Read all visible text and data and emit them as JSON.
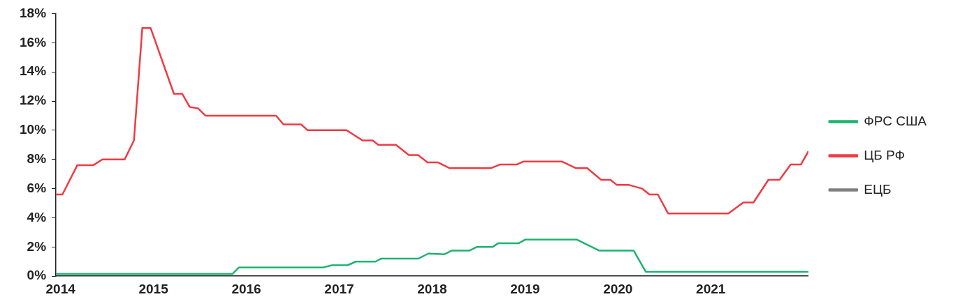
{
  "chart_data": {
    "type": "line",
    "grid": false,
    "legend": "right",
    "marker": "none",
    "line_style": "solid",
    "xlim": [
      2013.95,
      2022.05
    ],
    "xticks": [
      2014,
      2015,
      2016,
      2017,
      2018,
      2019,
      2020,
      2021
    ],
    "ylim": [
      0,
      18
    ],
    "yticks": [
      {
        "value": 0,
        "label": "0%"
      },
      {
        "value": 2,
        "label": "2%"
      },
      {
        "value": 4,
        "label": "4%"
      },
      {
        "value": 6,
        "label": "6%"
      },
      {
        "value": 8,
        "label": "8%"
      },
      {
        "value": 10,
        "label": "10%"
      },
      {
        "value": 12,
        "label": "12%"
      },
      {
        "value": 14,
        "label": "14%"
      },
      {
        "value": 16,
        "label": "16%"
      },
      {
        "value": 18,
        "label": "18%"
      }
    ],
    "series": [
      {
        "name": "ФРС США",
        "color": "#1db36f",
        "x": [
          2013.95,
          2015.85,
          2015.92,
          2016.83,
          2016.92,
          2017.09,
          2017.18,
          2017.39,
          2017.45,
          2017.85,
          2017.96,
          2018.13,
          2018.21,
          2018.4,
          2018.48,
          2018.65,
          2018.71,
          2018.93,
          2019.0,
          2019.56,
          2019.8,
          2020.17,
          2020.3,
          2022.05
        ],
        "values": [
          0.15,
          0.15,
          0.6,
          0.6,
          0.75,
          0.75,
          1.0,
          1.0,
          1.2,
          1.2,
          1.55,
          1.5,
          1.75,
          1.75,
          2.0,
          2.0,
          2.25,
          2.25,
          2.5,
          2.5,
          1.75,
          1.75,
          0.3,
          0.3
        ]
      },
      {
        "name": "ЦБ РФ",
        "color": "#f03a43",
        "x": [
          2013.95,
          2014.02,
          2014.18,
          2014.35,
          2014.45,
          2014.69,
          2014.79,
          2014.88,
          2014.97,
          2015.22,
          2015.31,
          2015.39,
          2015.48,
          2015.56,
          2016.32,
          2016.4,
          2016.59,
          2016.66,
          2017.08,
          2017.25,
          2017.36,
          2017.42,
          2017.61,
          2017.75,
          2017.85,
          2017.95,
          2018.06,
          2018.19,
          2018.63,
          2018.73,
          2018.91,
          2018.98,
          2019.4,
          2019.55,
          2019.67,
          2019.82,
          2019.92,
          2019.99,
          2020.12,
          2020.26,
          2020.34,
          2020.43,
          2020.54,
          2021.19,
          2021.35,
          2021.46,
          2021.62,
          2021.74,
          2021.86,
          2021.97,
          2022.05
        ],
        "values": [
          5.6,
          5.6,
          7.6,
          7.6,
          8.0,
          8.0,
          9.3,
          17.0,
          17.0,
          12.5,
          12.5,
          11.6,
          11.5,
          11.0,
          11.0,
          10.4,
          10.4,
          10.0,
          10.0,
          9.3,
          9.3,
          9.0,
          9.0,
          8.3,
          8.3,
          7.8,
          7.8,
          7.4,
          7.4,
          7.65,
          7.65,
          7.85,
          7.85,
          7.4,
          7.4,
          6.6,
          6.6,
          6.25,
          6.25,
          6.0,
          5.6,
          5.6,
          4.3,
          4.3,
          5.05,
          5.05,
          6.6,
          6.6,
          7.65,
          7.65,
          8.55
        ]
      },
      {
        "name": "ЕЦБ",
        "color": "#808080"
      }
    ]
  }
}
